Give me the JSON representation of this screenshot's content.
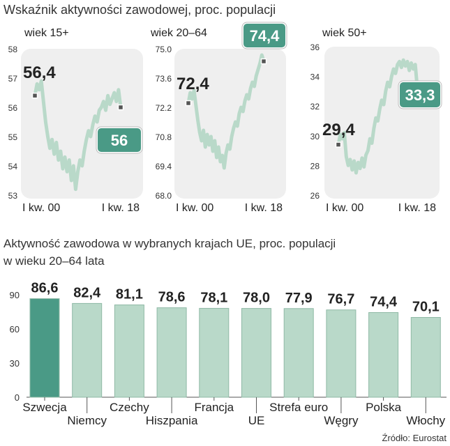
{
  "header": {
    "title": "Wskaźnik aktywności zawodowej, proc. populacji"
  },
  "footer": {
    "source": "Źródło: Eurostat"
  },
  "colors": {
    "panel_bg": "#efefef",
    "line": "#b9d9c9",
    "highlight_bar": "#4a9a86",
    "bar": "#b9d9c9",
    "badge": "#4a9a86",
    "text": "#222222"
  },
  "chart_data": [
    {
      "type": "line",
      "title": "wiek 15+",
      "ylim": [
        53,
        58
      ],
      "yticks": [
        "58",
        "57",
        "56",
        "55",
        "54",
        "53"
      ],
      "x_labels": [
        "I kw. 00",
        "I kw. 18"
      ],
      "start_label": "56,4",
      "end_label": "56",
      "series": [
        {
          "values": [
            56.4,
            56.8,
            56.6,
            56.9,
            56.2,
            55.5,
            55.0,
            54.6,
            54.9,
            54.4,
            54.8,
            54.2,
            54.5,
            53.9,
            54.3,
            53.8,
            54.2,
            53.5,
            54.0,
            53.2,
            53.8,
            54.2,
            54.0,
            54.5,
            54.9,
            55.2,
            55.0,
            55.4,
            55.7,
            55.5,
            55.9,
            56.0,
            56.2,
            55.9,
            56.4,
            56.1,
            56.3,
            56.5,
            56.2,
            56.6,
            56.0
          ]
        }
      ]
    },
    {
      "type": "line",
      "title": "wiek 20–64",
      "ylim": [
        68.0,
        75.0
      ],
      "yticks": [
        "75.0",
        "73.6",
        "72.2",
        "70.8",
        "69.4",
        "68.0"
      ],
      "x_labels": [
        "I kw. 00",
        "I kw. 18"
      ],
      "start_label": "72,4",
      "end_label": "74,4",
      "series": [
        {
          "values": [
            72.4,
            72.9,
            72.6,
            73.0,
            72.3,
            71.6,
            71.0,
            70.6,
            71.1,
            70.3,
            70.9,
            70.4,
            70.8,
            70.1,
            70.6,
            69.8,
            70.3,
            69.6,
            69.9,
            69.3,
            70.0,
            70.4,
            70.2,
            70.8,
            71.2,
            71.5,
            71.3,
            71.9,
            72.2,
            72.0,
            72.5,
            72.8,
            72.6,
            73.1,
            73.4,
            73.2,
            73.7,
            74.0,
            74.3,
            74.7,
            74.4
          ]
        }
      ]
    },
    {
      "type": "line",
      "title": "wiek 50+",
      "ylim": [
        26,
        36
      ],
      "yticks": [
        "36",
        "34",
        "32",
        "30",
        "28",
        "26"
      ],
      "x_labels": [
        "I kw. 00",
        "I kw. 18"
      ],
      "start_label": "29,4",
      "end_label": "33,3",
      "series": [
        {
          "values": [
            29.4,
            30.1,
            29.8,
            30.2,
            28.6,
            28.0,
            28.4,
            27.7,
            28.3,
            27.5,
            28.2,
            27.8,
            28.5,
            27.9,
            28.7,
            29.0,
            29.8,
            29.5,
            30.5,
            31.2,
            31.0,
            31.8,
            32.4,
            32.1,
            33.0,
            33.6,
            33.3,
            34.0,
            34.5,
            34.2,
            34.8,
            35.0,
            34.6,
            35.1,
            34.7,
            35.0,
            34.4,
            34.9,
            34.5,
            34.8,
            33.3
          ]
        }
      ]
    },
    {
      "type": "bar",
      "title": "Aktywność zawodowa w wybranych krajach UE, proc. populacji\nw wieku 20–64 lata",
      "ylim": [
        0,
        90
      ],
      "yticks": [
        "90",
        "60",
        "30",
        "0"
      ],
      "categories": [
        "Szwecja",
        "Niemcy",
        "Czechy",
        "Hiszpania",
        "Francja",
        "UE",
        "Strefa euro",
        "Węgry",
        "Polska",
        "Włochy"
      ],
      "values": [
        86.6,
        82.4,
        81.1,
        78.6,
        78.1,
        78.0,
        77.9,
        76.7,
        74.4,
        70.1
      ],
      "value_labels": [
        "86,6",
        "82,4",
        "81,1",
        "78,6",
        "78,1",
        "78,0",
        "77,9",
        "76,7",
        "74,4",
        "70,1"
      ],
      "highlight": "Szwecja"
    }
  ]
}
